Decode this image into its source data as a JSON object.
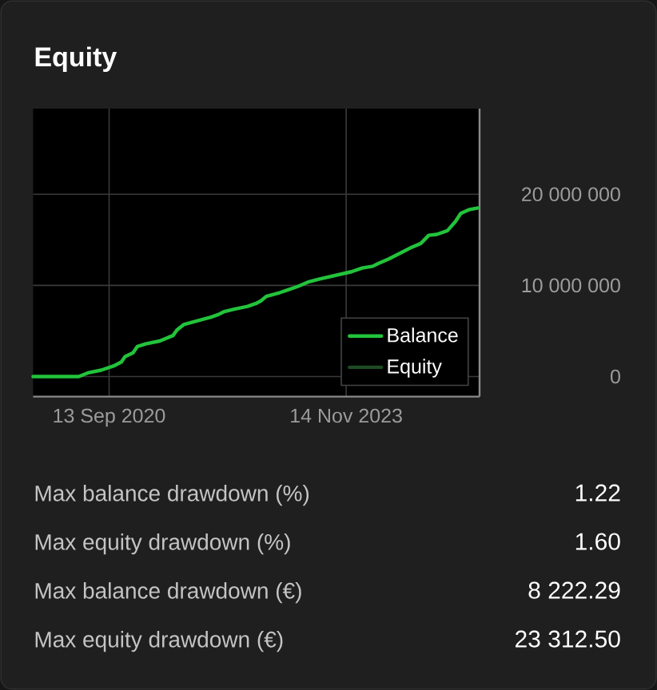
{
  "chart_data": {
    "type": "line",
    "title": "Equity",
    "x": [
      "2019-09-08",
      "2020-04-18",
      "2020-06-01",
      "2020-08-05",
      "2020-10-09",
      "2020-11-12",
      "2020-11-30",
      "2021-01-08",
      "2021-01-29",
      "2021-03-14",
      "2021-05-18",
      "2021-07-22",
      "2021-08-10",
      "2021-09-12",
      "2021-11-16",
      "2022-01-20",
      "2022-02-28",
      "2022-03-26",
      "2022-05-17",
      "2022-07-21",
      "2022-08-29",
      "2022-09-24",
      "2022-10-20",
      "2022-12-24",
      "2023-02-01",
      "2023-03-25",
      "2023-05-16",
      "2023-07-07",
      "2023-09-23",
      "2023-12-10",
      "2024-01-31",
      "2024-03-23",
      "2024-04-18",
      "2024-06-09",
      "2024-07-31",
      "2024-09-21",
      "2024-11-12",
      "2024-12-21",
      "2025-01-29",
      "2025-03-22",
      "2025-04-30",
      "2025-05-26",
      "2025-07-04",
      "2025-08-18"
    ],
    "series": [
      {
        "name": "Balance",
        "color": "#22c33b",
        "values": [
          0,
          0,
          400000,
          700000,
          1200000,
          1600000,
          2200000,
          2600000,
          3300000,
          3600000,
          3900000,
          4500000,
          5100000,
          5700000,
          6100000,
          6500000,
          6800000,
          7100000,
          7400000,
          7700000,
          8000000,
          8300000,
          8800000,
          9200000,
          9500000,
          9900000,
          10400000,
          10700000,
          11100000,
          11500000,
          11900000,
          12100000,
          12400000,
          12900000,
          13500000,
          14100000,
          14600000,
          15500000,
          15600000,
          16000000,
          17000000,
          17900000,
          18300000,
          18500000
        ]
      },
      {
        "name": "Equity",
        "color": "#1d4a23",
        "values": [
          null,
          null,
          null,
          null,
          null,
          null,
          null,
          null,
          null,
          null,
          null,
          null,
          null,
          null,
          null,
          null,
          null,
          null,
          null,
          null,
          null,
          null,
          null,
          null,
          null,
          null,
          null,
          null,
          null,
          null,
          null,
          null,
          null,
          null,
          null,
          null,
          null,
          null,
          null,
          null,
          null,
          null,
          null,
          null
        ]
      }
    ],
    "xlim": [
      "2019-09-08",
      "2025-08-26"
    ],
    "xticks": [
      {
        "value": "2020-09-13",
        "label": "13 Sep 2020"
      },
      {
        "value": "2023-11-14",
        "label": "14 Nov 2023"
      }
    ],
    "ylim": [
      -2200000,
      29400000
    ],
    "yticks": [
      {
        "value": 20000000,
        "label": "20 000 000"
      },
      {
        "value": 10000000,
        "label": "10 000 000"
      },
      0
    ],
    "grid": true,
    "legend": "bottom right",
    "annotations": [
      "Max balance drawdown (%)",
      "1.22",
      "Max equity drawdown (%)",
      "1.60",
      "Max balance drawdown (€)",
      "8 222.29",
      "Max equity drawdown (€)",
      "23 312.50"
    ]
  }
}
